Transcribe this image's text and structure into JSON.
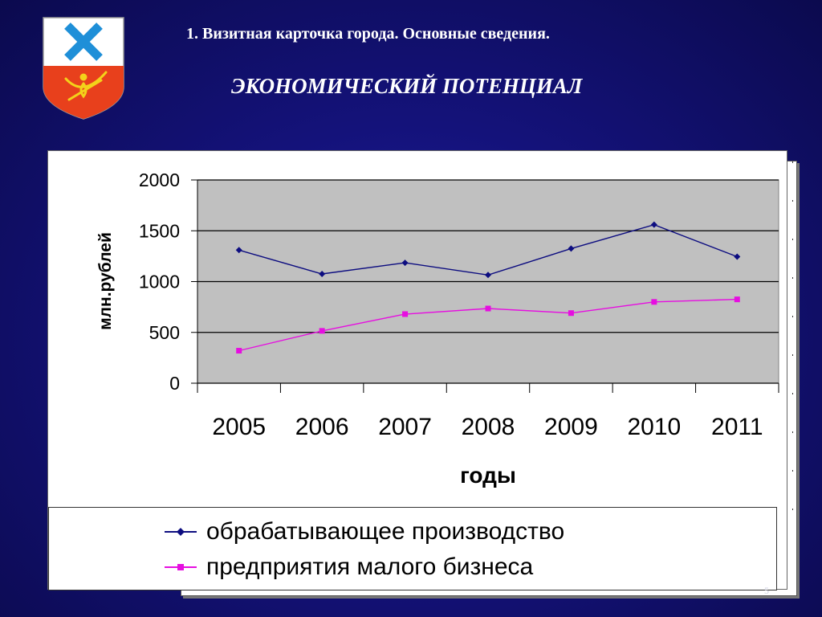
{
  "slide": {
    "title": "1. Визитная карточка города. Основные сведения.",
    "subtitle": "ЭКОНОМИЧЕСКИЙ ПОТЕНЦИАЛ",
    "page_number": "5",
    "background_color": "#14127a"
  },
  "crest": {
    "icon": "city-coat-of-arms-icon",
    "colors": [
      "#ffffff",
      "#1e8fd8",
      "#e8401c",
      "#f3d21a"
    ]
  },
  "chart_data": {
    "type": "line",
    "categories": [
      "2005",
      "2006",
      "2007",
      "2008",
      "2009",
      "2010",
      "2011"
    ],
    "series": [
      {
        "name": "обрабатывающее производство",
        "values": [
          1310,
          1075,
          1185,
          1065,
          1325,
          1560,
          1245
        ],
        "color": "#0d0d80",
        "marker": "diamond"
      },
      {
        "name": "предприятия малого бизнеса",
        "values": [
          320,
          515,
          680,
          735,
          690,
          800,
          825
        ],
        "color": "#e60ee0",
        "marker": "square"
      }
    ],
    "xlabel": "годы",
    "ylabel": "млн.рублей",
    "ylim": [
      0,
      2000
    ],
    "yticks": [
      "0",
      "500",
      "1000",
      "1500",
      "2000"
    ],
    "grid": true,
    "plot_background": "#c0c0c0",
    "legend_position": "bottom"
  }
}
